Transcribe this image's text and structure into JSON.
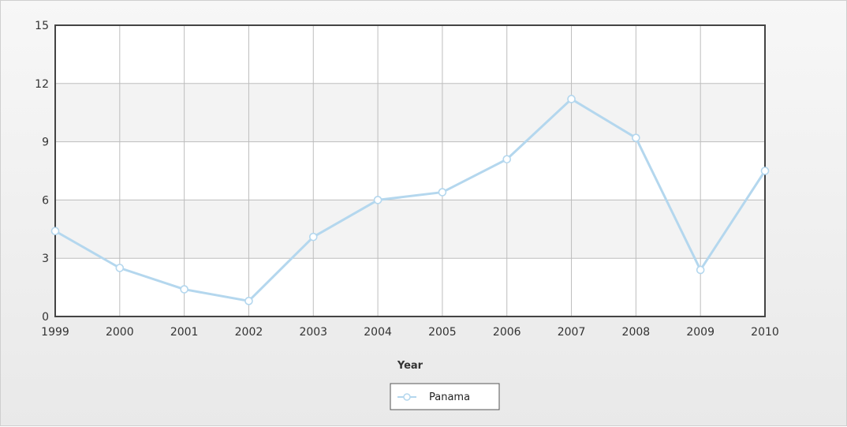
{
  "chart_data": {
    "type": "line",
    "title": "",
    "xlabel": "Year",
    "ylabel": "",
    "ylim": [
      0,
      15
    ],
    "yticks": [
      0,
      3,
      6,
      9,
      12,
      15
    ],
    "x": [
      "1999",
      "2000",
      "2001",
      "2002",
      "2003",
      "2004",
      "2005",
      "2006",
      "2007",
      "2008",
      "2009",
      "2010"
    ],
    "series": [
      {
        "name": "Panama",
        "values": [
          4.4,
          2.5,
          1.4,
          0.8,
          4.1,
          6.0,
          6.4,
          8.1,
          11.2,
          9.2,
          2.4,
          7.5
        ]
      }
    ],
    "grid": true,
    "legend_position": "bottom",
    "colors": {
      "series": "#b4d7ee",
      "marker_fill": "#ffffff",
      "plot_border": "#444444",
      "grid": "#bdbdbd",
      "band": "#f3f3f3"
    }
  }
}
